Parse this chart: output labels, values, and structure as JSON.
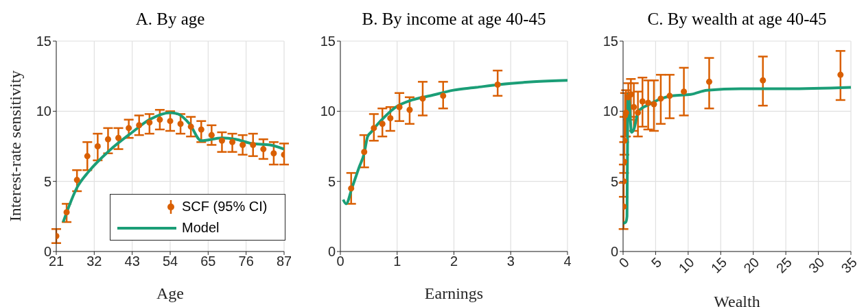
{
  "chart_data": [
    {
      "type": "scatter",
      "title": "A. By age",
      "xlabel": "Age",
      "ylabel": "Interest-rate sensitivity",
      "xlim": [
        21,
        87
      ],
      "xticks": [
        21,
        32,
        43,
        54,
        65,
        76,
        87
      ],
      "ylim": [
        0,
        15
      ],
      "yticks": [
        0,
        5,
        10,
        15
      ],
      "grid": true,
      "legend": "bottom right",
      "series": [
        {
          "name": "SCF (95% CI)",
          "marker": "circle",
          "color": "#d95f02",
          "x": [
            21,
            24,
            27,
            30,
            33,
            36,
            39,
            42,
            45,
            48,
            51,
            54,
            57,
            60,
            63,
            66,
            69,
            72,
            75,
            78,
            81,
            84,
            87
          ],
          "values": [
            1.1,
            2.8,
            5.1,
            6.8,
            7.5,
            8.0,
            8.1,
            8.8,
            9.0,
            9.2,
            9.4,
            9.3,
            9.1,
            8.9,
            8.7,
            8.3,
            7.9,
            7.8,
            7.6,
            7.6,
            7.3,
            7.0,
            6.9
          ],
          "errors": [
            [
              0.6,
              1.6
            ],
            [
              2.1,
              3.4
            ],
            [
              4.3,
              5.8
            ],
            [
              5.8,
              7.8
            ],
            [
              6.5,
              8.4
            ],
            [
              7.0,
              8.8
            ],
            [
              7.3,
              8.8
            ],
            [
              8.1,
              9.4
            ],
            [
              8.3,
              9.7
            ],
            [
              8.4,
              9.8
            ],
            [
              8.7,
              10.1
            ],
            [
              8.6,
              10.0
            ],
            [
              8.4,
              9.8
            ],
            [
              8.2,
              9.6
            ],
            [
              7.8,
              9.3
            ],
            [
              7.6,
              9.0
            ],
            [
              7.1,
              8.5
            ],
            [
              7.1,
              8.4
            ],
            [
              6.9,
              8.3
            ],
            [
              6.8,
              8.4
            ],
            [
              6.6,
              8.0
            ],
            [
              6.2,
              7.8
            ],
            [
              6.2,
              7.7
            ]
          ]
        },
        {
          "name": "Model",
          "type": "line",
          "marker": "none",
          "color": "#1b9e77",
          "x": [
            23,
            27.1,
            30.4,
            36.4,
            43,
            48,
            54,
            56.3,
            59.6,
            63,
            69,
            73,
            77.6,
            82.9,
            87
          ],
          "values": [
            2.1,
            4.6,
            5.7,
            7.2,
            8.5,
            9.4,
            9.9,
            9.8,
            9.1,
            7.9,
            8.1,
            8.0,
            7.7,
            7.6,
            7.3
          ]
        }
      ]
    },
    {
      "type": "scatter",
      "title": "B. By income at age 40-45",
      "xlabel": "Earnings",
      "xlim": [
        0,
        4
      ],
      "xticks": [
        0,
        1,
        2,
        3,
        4
      ],
      "ylim": [
        0,
        15
      ],
      "yticks": [
        0,
        5,
        10,
        15
      ],
      "grid": true,
      "series": [
        {
          "marker": "circle",
          "color": "#d95f02",
          "x": [
            0.19,
            0.42,
            0.59,
            0.74,
            0.88,
            1.04,
            1.22,
            1.45,
            1.81,
            2.77
          ],
          "values": [
            4.5,
            7.1,
            8.8,
            9.1,
            9.5,
            10.3,
            10.1,
            10.9,
            11.1,
            11.9
          ],
          "errors": [
            [
              3.4,
              5.6
            ],
            [
              6.0,
              8.3
            ],
            [
              7.9,
              9.8
            ],
            [
              8.2,
              10.2
            ],
            [
              8.6,
              10.3
            ],
            [
              9.3,
              11.3
            ],
            [
              9.1,
              11.0
            ],
            [
              9.7,
              12.1
            ],
            [
              10.2,
              12.1
            ],
            [
              11.1,
              12.9
            ]
          ]
        },
        {
          "type": "line",
          "marker": "none",
          "color": "#1b9e77",
          "x": [
            0.05,
            0.1,
            0.21,
            0.33,
            0.42,
            0.48,
            0.54,
            0.64,
            0.78,
            0.98,
            1.26,
            1.58,
            1.99,
            2.39,
            2.79,
            3.4,
            4
          ],
          "values": [
            3.7,
            3.4,
            4.6,
            6.0,
            7.0,
            8.2,
            8.5,
            9.0,
            9.6,
            10.3,
            10.8,
            11.1,
            11.5,
            11.7,
            11.9,
            12.1,
            12.2
          ]
        }
      ]
    },
    {
      "type": "scatter",
      "title": "C. By wealth at age 40-45",
      "xlabel": "Wealth",
      "xlim": [
        0,
        35
      ],
      "xticks": [
        0,
        5,
        10,
        15,
        20,
        25,
        30,
        35
      ],
      "ylim": [
        0,
        15
      ],
      "yticks": [
        0,
        5,
        10,
        15
      ],
      "grid": true,
      "series": [
        {
          "marker": "circle",
          "color": "#d95f02",
          "x": [
            0.07,
            0.1,
            0.15,
            0.2,
            0.3,
            0.45,
            0.8,
            1.2,
            1.65,
            2.28,
            2.98,
            3.86,
            4.74,
            5.79,
            7.16,
            9.34,
            13.23,
            21.48,
            33.4
          ],
          "values": [
            3.2,
            5.0,
            6.4,
            7.9,
            9.7,
            9.9,
            11.0,
            11.2,
            10.3,
            9.9,
            10.7,
            10.6,
            10.5,
            10.9,
            11.1,
            11.4,
            12.1,
            12.2,
            12.6
          ],
          "errors": [
            [
              1.6,
              4.9
            ],
            [
              3.9,
              6.2
            ],
            [
              5.6,
              7.8
            ],
            [
              6.9,
              9.6
            ],
            [
              8.2,
              11.3
            ],
            [
              8.2,
              11.5
            ],
            [
              9.4,
              12.0
            ],
            [
              9.6,
              12.3
            ],
            [
              8.6,
              12.0
            ],
            [
              8.2,
              11.4
            ],
            [
              8.9,
              12.4
            ],
            [
              8.7,
              12.2
            ],
            [
              8.6,
              12.2
            ],
            [
              9.1,
              12.6
            ],
            [
              9.5,
              12.6
            ],
            [
              9.7,
              13.1
            ],
            [
              10.2,
              13.8
            ],
            [
              10.4,
              13.9
            ],
            [
              10.8,
              14.3
            ]
          ]
        },
        {
          "type": "line",
          "marker": "none",
          "color": "#1b9e77",
          "x": [
            0,
            0.42,
            0.6,
            0.7,
            0.77,
            0.95,
            1.3,
            1.65,
            2.35,
            4.1,
            5.86,
            7.6,
            10.4,
            12.9,
            18.1,
            25.2,
            35
          ],
          "values": [
            2.0,
            2.1,
            2.5,
            9.0,
            11.2,
            10.6,
            8.5,
            8.7,
            10.0,
            10.5,
            10.9,
            11.1,
            11.2,
            11.5,
            11.6,
            11.6,
            11.7
          ]
        }
      ]
    }
  ]
}
